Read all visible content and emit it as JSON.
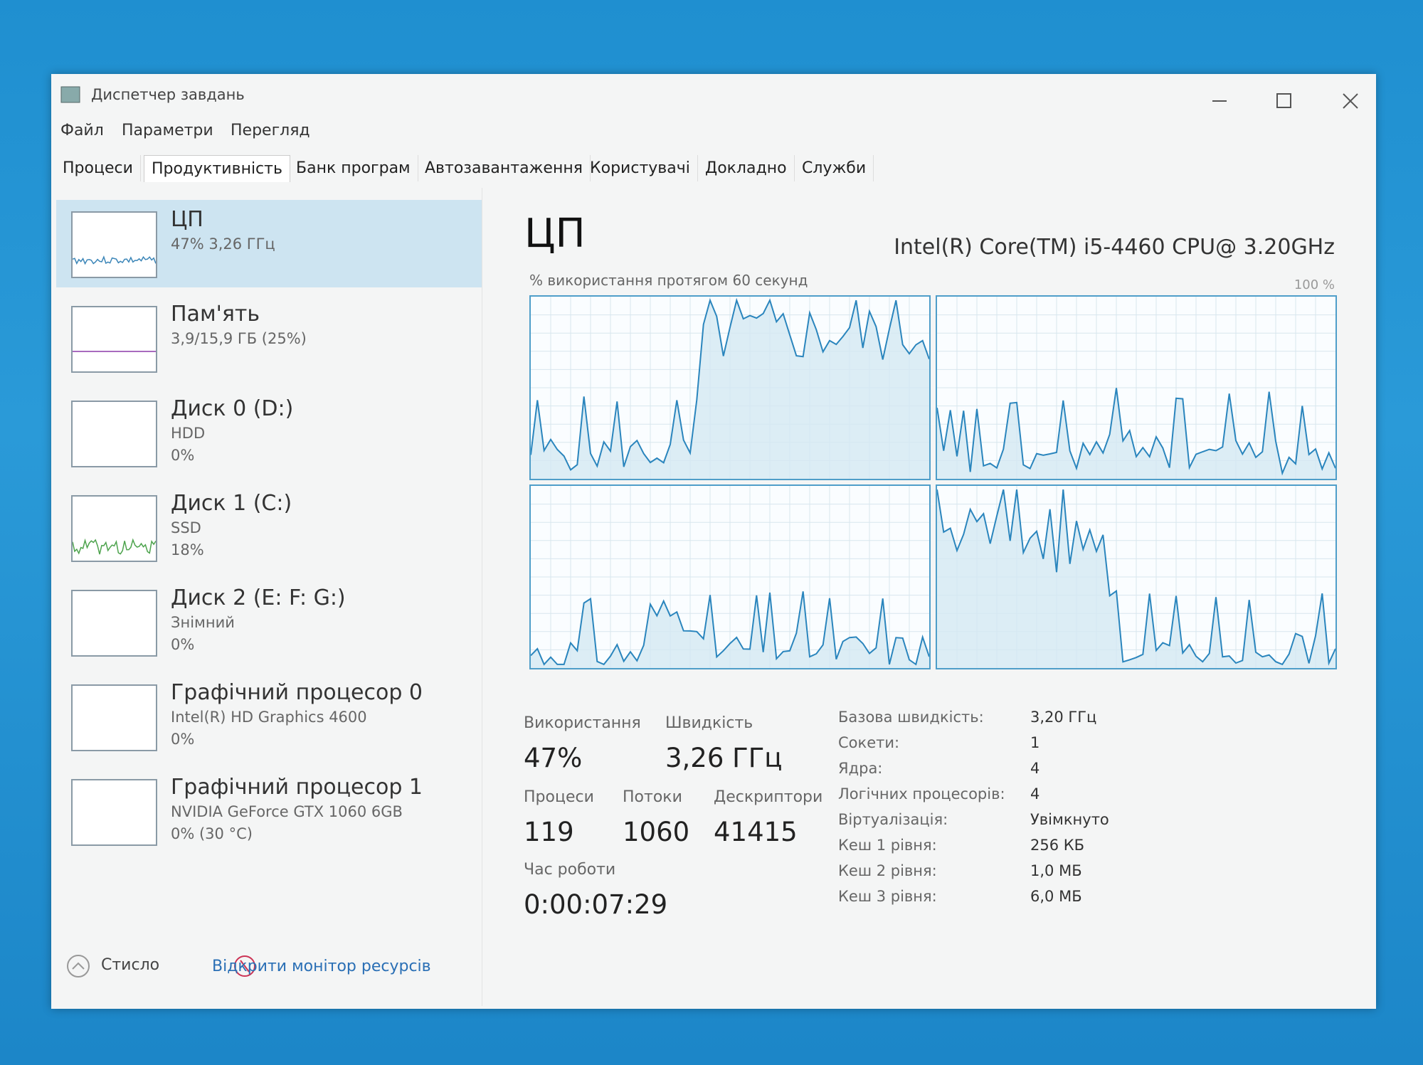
{
  "window": {
    "title": "Диспетчер завдань"
  },
  "menu": [
    "Файл",
    "Параметри",
    "Перегляд"
  ],
  "tabs": [
    "Процеси",
    "Продуктивність",
    "Банк програм",
    "Автозавантаження",
    "Користувачі",
    "Докладно",
    "Служби"
  ],
  "sidebar": [
    {
      "name": "ЦП",
      "lines": [
        "47% 3,26 ГГц"
      ]
    },
    {
      "name": "Пам'ять",
      "lines": [
        "3,9/15,9 ГБ (25%)"
      ]
    },
    {
      "name": "Диск 0 (D:)",
      "lines": [
        "HDD",
        "0%"
      ]
    },
    {
      "name": "Диск 1 (C:)",
      "lines": [
        "SSD",
        "18%"
      ]
    },
    {
      "name": "Диск 2 (E: F: G:)",
      "lines": [
        "Знімний",
        "0%"
      ]
    },
    {
      "name": "Графічний процесор 0",
      "lines": [
        "Intel(R) HD Graphics 4600",
        "0%"
      ]
    },
    {
      "name": "Графічний процесор 1",
      "lines": [
        "NVIDIA GeForce GTX 1060 6GB",
        "0% (30 °C)"
      ]
    }
  ],
  "main": {
    "title": "ЦП",
    "cpu_model": "Intel(R) Core(TM) i5-4460 CPU@ 3.20GHz",
    "graph_label": "% використання протягом 60 секунд",
    "graph_max": "100 %",
    "stats": [
      {
        "label": "Використання",
        "value": "47%"
      },
      {
        "label": "Швидкість",
        "value": "3,26 ГГц"
      },
      {
        "label": "Процеси",
        "value": "119"
      },
      {
        "label": "Потоки",
        "value": "1060"
      },
      {
        "label": "Дескриптори",
        "value": "41415"
      },
      {
        "label": "Час роботи",
        "value": "0:00:07:29"
      }
    ],
    "details": [
      [
        "Базова швидкість:",
        "3,20 ГГц"
      ],
      [
        "Сокети:",
        "1"
      ],
      [
        "Ядра:",
        "4"
      ],
      [
        "Логічних процесорів:",
        "4"
      ],
      [
        "Віртуалізація:",
        "Увімкнуто"
      ],
      [
        "Кеш 1 рівня:",
        "256 КБ"
      ],
      [
        "Кеш 2 рівня:",
        "1,0 МБ"
      ],
      [
        "Кеш 3 рівня:",
        "6,0 МБ"
      ]
    ]
  },
  "footer": {
    "less": "Стисло",
    "monitor": "Відкрити монітор ресурсів"
  }
}
